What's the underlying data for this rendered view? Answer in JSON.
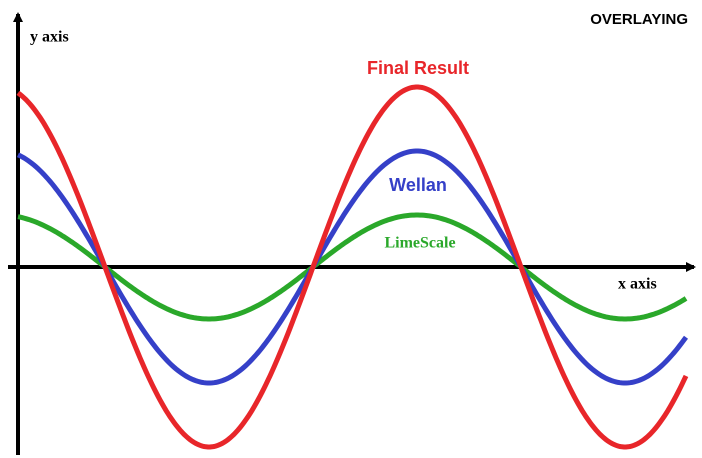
{
  "title": "OVERLAYING",
  "y_axis_label": "y axis",
  "x_axis_label": "x axis",
  "waves": [
    {
      "label": "Final Result"
    },
    {
      "label": "Wellan"
    },
    {
      "label": "LimeScale"
    }
  ]
}
